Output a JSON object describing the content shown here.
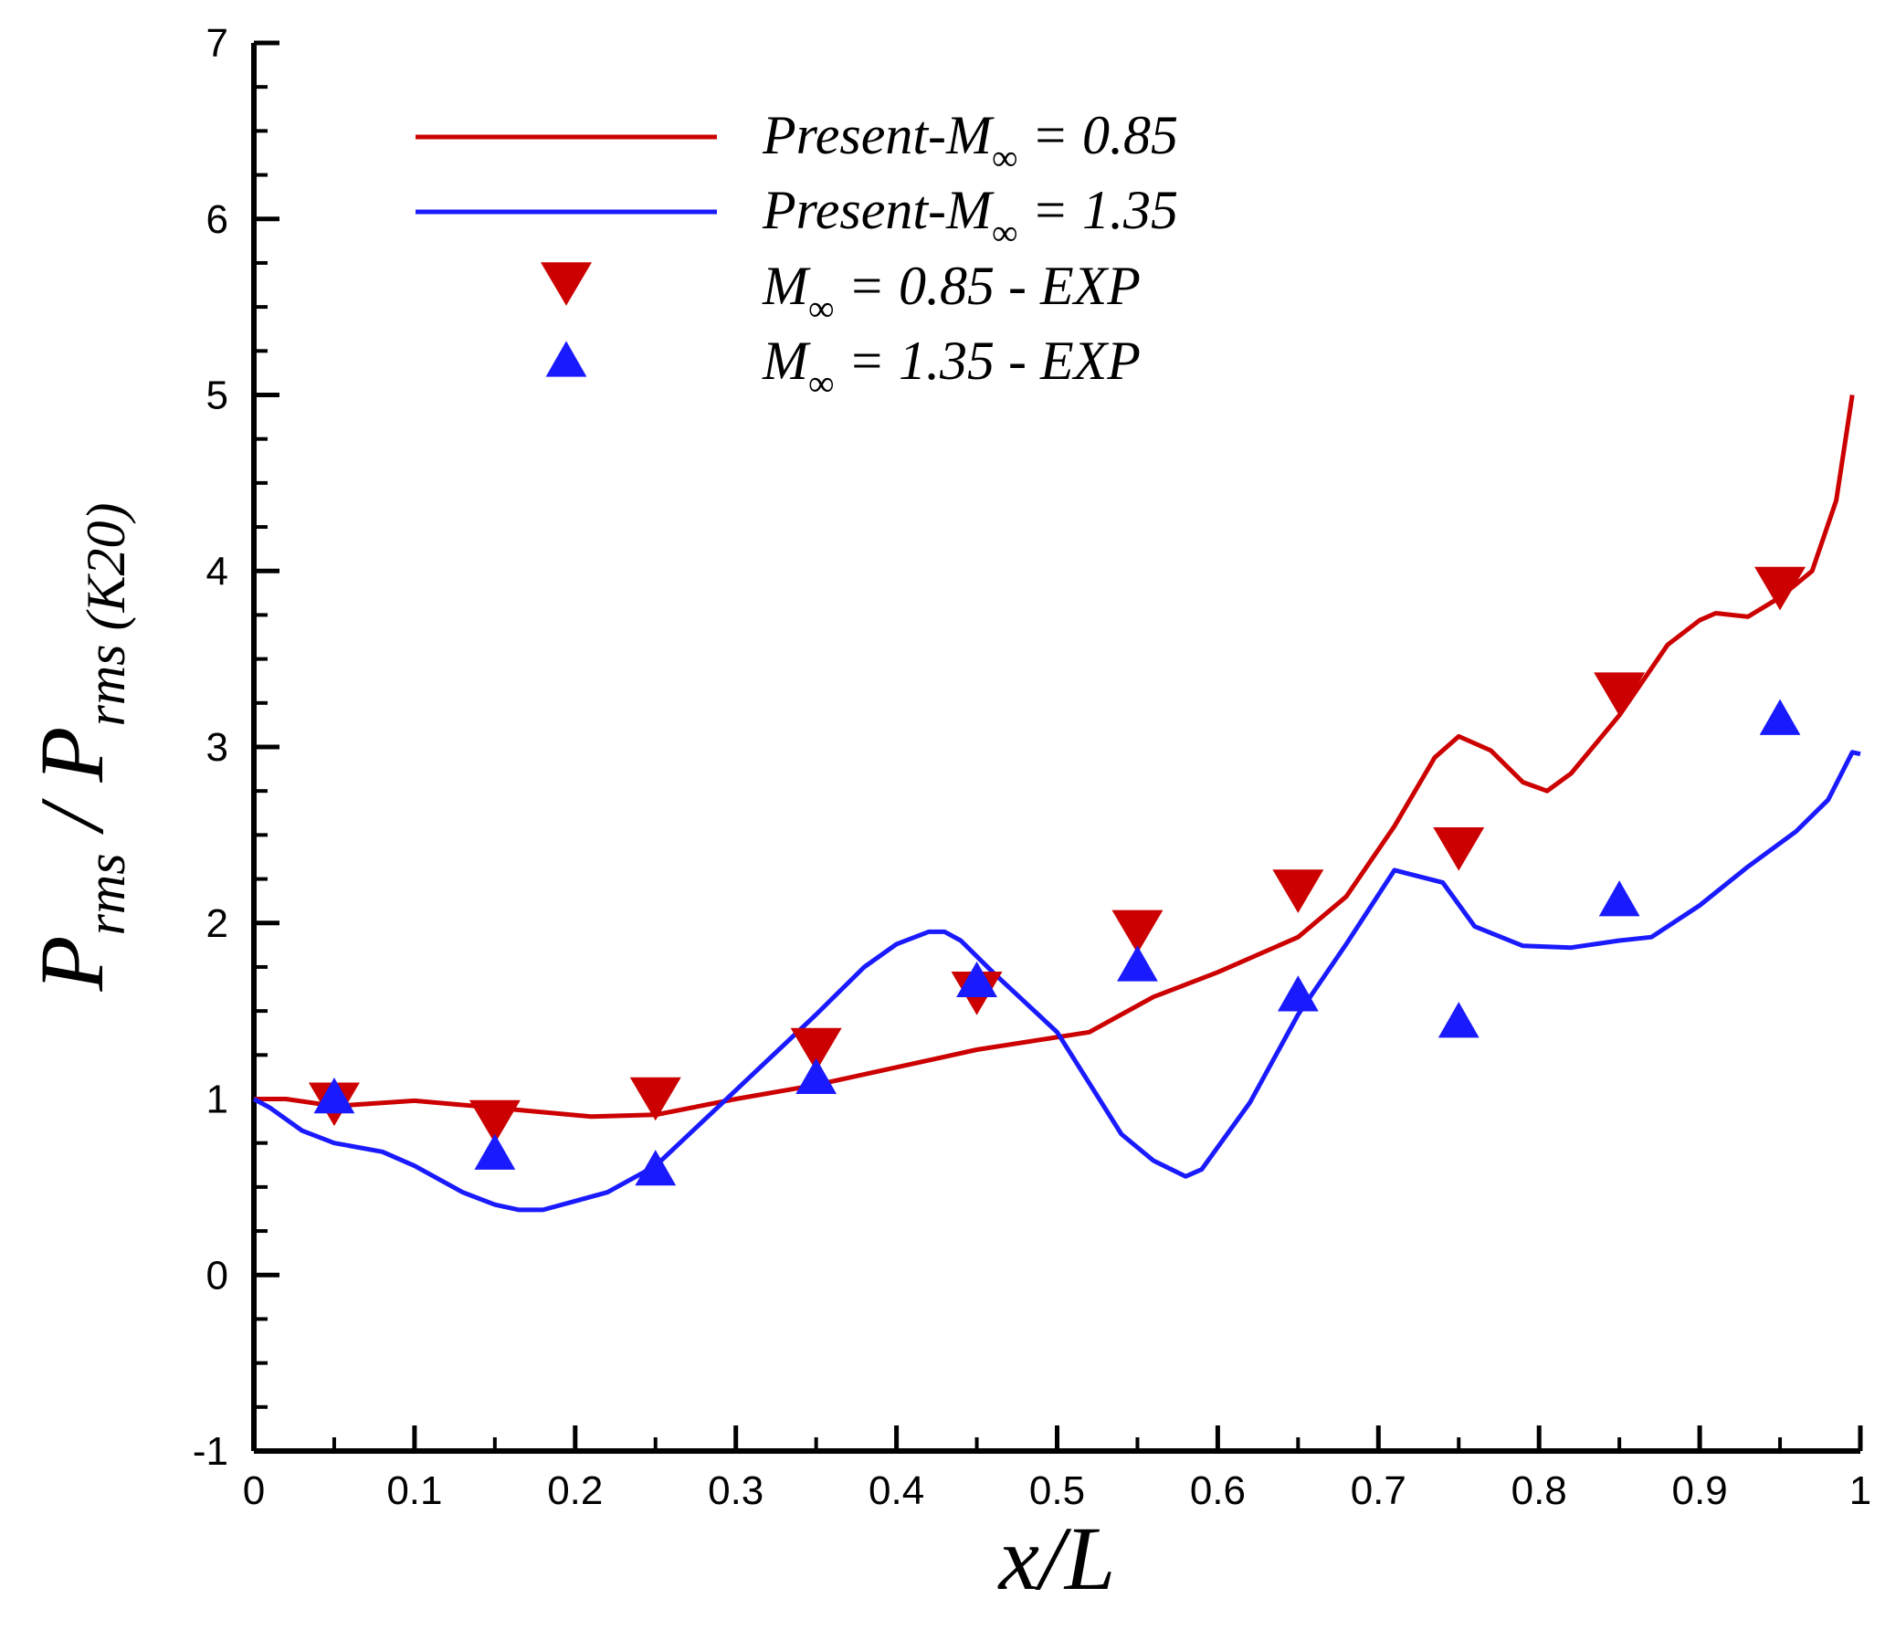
{
  "chart_data": {
    "type": "line",
    "title": "",
    "xlabel": "x/L",
    "ylabel": {
      "main": "P",
      "sub_numerator": "rms",
      "separator": " / ",
      "sub_denominator": "rms (K20)"
    },
    "xlim": [
      0,
      1
    ],
    "ylim": [
      -1,
      7
    ],
    "x_ticks": [
      "0",
      "0.1",
      "0.2",
      "0.3",
      "0.4",
      "0.5",
      "0.6",
      "0.7",
      "0.8",
      "0.9",
      "1"
    ],
    "y_ticks": [
      "-1",
      "0",
      "1",
      "2",
      "3",
      "4",
      "5",
      "6",
      "7"
    ],
    "grid": false,
    "legend_position": "top-left",
    "series": [
      {
        "name": "Present-M∞ = 0.85",
        "label_prefix": "Present-M",
        "label_suffix": " = 0.85",
        "kind": "line",
        "color": "#cc0000",
        "x": [
          0,
          0.02,
          0.05,
          0.1,
          0.15,
          0.21,
          0.25,
          0.3,
          0.35,
          0.4,
          0.45,
          0.52,
          0.56,
          0.6,
          0.65,
          0.68,
          0.71,
          0.735,
          0.75,
          0.77,
          0.79,
          0.805,
          0.82,
          0.85,
          0.88,
          0.9,
          0.91,
          0.93,
          0.95,
          0.97,
          0.985,
          0.995
        ],
        "y": [
          1.0,
          1.0,
          0.96,
          0.99,
          0.95,
          0.9,
          0.91,
          1.0,
          1.08,
          1.18,
          1.28,
          1.38,
          1.58,
          1.72,
          1.92,
          2.15,
          2.55,
          2.94,
          3.06,
          2.98,
          2.8,
          2.75,
          2.85,
          3.18,
          3.58,
          3.72,
          3.76,
          3.74,
          3.85,
          4.0,
          4.4,
          5.0
        ]
      },
      {
        "name": "Present-M∞ = 1.35",
        "label_prefix": "Present-M",
        "label_suffix": " = 1.35",
        "kind": "line",
        "color": "#1a1aff",
        "x": [
          0,
          0.01,
          0.03,
          0.05,
          0.08,
          0.1,
          0.13,
          0.15,
          0.165,
          0.18,
          0.2,
          0.22,
          0.25,
          0.3,
          0.35,
          0.38,
          0.4,
          0.42,
          0.43,
          0.44,
          0.46,
          0.5,
          0.54,
          0.56,
          0.58,
          0.59,
          0.62,
          0.65,
          0.68,
          0.71,
          0.74,
          0.76,
          0.79,
          0.82,
          0.85,
          0.87,
          0.9,
          0.93,
          0.96,
          0.98,
          0.99,
          0.995,
          1.0
        ],
        "y": [
          1.0,
          0.95,
          0.82,
          0.75,
          0.7,
          0.62,
          0.47,
          0.4,
          0.37,
          0.37,
          0.42,
          0.47,
          0.62,
          1.05,
          1.48,
          1.75,
          1.88,
          1.95,
          1.95,
          1.9,
          1.72,
          1.38,
          0.8,
          0.65,
          0.56,
          0.6,
          0.98,
          1.48,
          1.88,
          2.3,
          2.23,
          1.98,
          1.87,
          1.86,
          1.9,
          1.92,
          2.1,
          2.32,
          2.52,
          2.7,
          2.88,
          2.97,
          2.96
        ]
      },
      {
        "name": "M∞ = 0.85 - EXP",
        "label_prefix": "M",
        "label_suffix": " = 0.85 - EXP",
        "kind": "marker",
        "marker": "triangle-down",
        "color": "#cc0000",
        "x": [
          0.05,
          0.15,
          0.25,
          0.35,
          0.45,
          0.55,
          0.65,
          0.75,
          0.85,
          0.95
        ],
        "y": [
          0.97,
          0.87,
          1.0,
          1.28,
          1.6,
          1.95,
          2.18,
          2.42,
          3.3,
          3.9
        ]
      },
      {
        "name": "M∞ = 1.35 - EXP",
        "label_prefix": "M",
        "label_suffix": " = 1.35 - EXP",
        "kind": "marker",
        "marker": "triangle-up",
        "color": "#1a1aff",
        "x": [
          0.05,
          0.15,
          0.25,
          0.35,
          0.45,
          0.55,
          0.65,
          0.75,
          0.85,
          0.95
        ],
        "y": [
          1.02,
          0.7,
          0.61,
          1.13,
          1.68,
          1.77,
          1.6,
          1.45,
          2.14,
          3.17
        ]
      }
    ],
    "infinity_symbol": "∞"
  }
}
